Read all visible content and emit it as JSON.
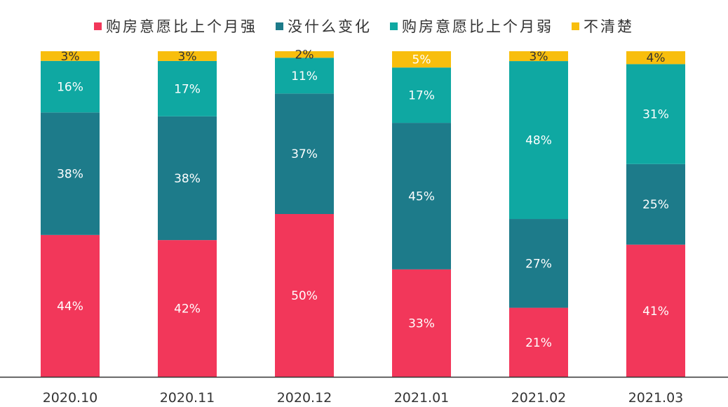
{
  "chart_data": {
    "type": "bar",
    "stacked": true,
    "percent": true,
    "categories": [
      "2020.10",
      "2020.11",
      "2020.12",
      "2021.01",
      "2021.02",
      "2021.03"
    ],
    "series": [
      {
        "name": "购房意愿比上个月强",
        "color": "#F2375A",
        "values": [
          44,
          42,
          50,
          33,
          21,
          41
        ]
      },
      {
        "name": "没什么变化",
        "color": "#1D7B8A",
        "values": [
          38,
          38,
          37,
          45,
          27,
          25
        ]
      },
      {
        "name": "购房意愿比上个月弱",
        "color": "#0FA8A2",
        "values": [
          16,
          17,
          11,
          17,
          48,
          31
        ]
      },
      {
        "name": "不清楚",
        "color": "#F8BE0D",
        "values": [
          3,
          3,
          2,
          5,
          3,
          4
        ]
      }
    ],
    "ylim": [
      0,
      100
    ],
    "legend_position": "top",
    "grid": false
  }
}
